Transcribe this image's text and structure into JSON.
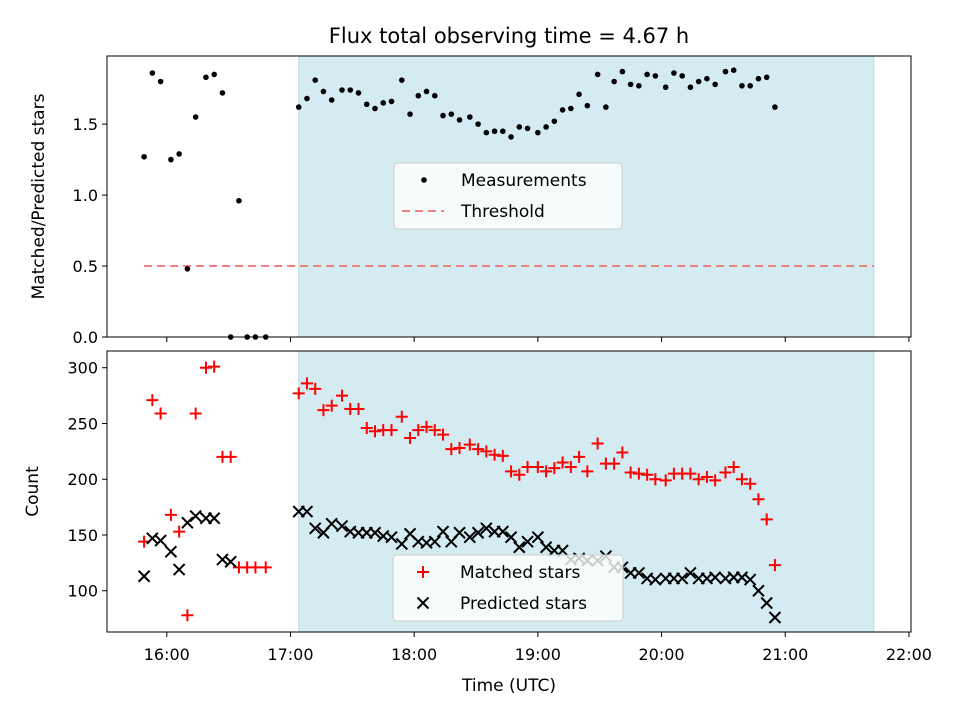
{
  "figure": {
    "title": "Flux total observing time = 4.67 h",
    "xlabel": "Time (UTC)",
    "x_ticks": [
      "16:00",
      "17:00",
      "18:00",
      "19:00",
      "20:00",
      "21:00",
      "22:00"
    ]
  },
  "colors": {
    "shade": "#d3ebf1",
    "shade_edge": "#bcdde6",
    "measurement": "#000000",
    "threshold": "#f08080",
    "matched": "#ff0000",
    "predicted": "#000000"
  },
  "chart_data": [
    {
      "type": "scatter",
      "ylabel": "Matched/Predicted stars",
      "xlim": [
        "15:31",
        "22:01"
      ],
      "ylim": [
        0,
        1.98
      ],
      "y_ticks": [
        "0.0",
        "0.5",
        "1.0",
        "1.5"
      ],
      "shaded_region": [
        "17:04",
        "21:43"
      ],
      "legend": {
        "placement": "center",
        "entries": [
          "Measurements",
          "Threshold"
        ]
      },
      "threshold": {
        "name": "Threshold",
        "y": 0.5,
        "x_range": [
          "15:49",
          "21:43"
        ],
        "style": "dashed"
      },
      "series": [
        {
          "name": "Measurements",
          "marker": "dot",
          "points": [
            [
              "15:49",
              1.27
            ],
            [
              "15:53",
              1.86
            ],
            [
              "15:57",
              1.8
            ],
            [
              "16:02",
              1.25
            ],
            [
              "16:06",
              1.29
            ],
            [
              "16:10",
              0.48
            ],
            [
              "16:14",
              1.55
            ],
            [
              "16:19",
              1.83
            ],
            [
              "16:23",
              1.85
            ],
            [
              "16:27",
              1.72
            ],
            [
              "16:31",
              0.0
            ],
            [
              "16:35",
              0.96
            ],
            [
              "16:39",
              0.0
            ],
            [
              "16:43",
              0.0
            ],
            [
              "16:48",
              0.0
            ],
            [
              "17:04",
              1.62
            ],
            [
              "17:08",
              1.68
            ],
            [
              "17:12",
              1.81
            ],
            [
              "17:16",
              1.73
            ],
            [
              "17:20",
              1.67
            ],
            [
              "17:25",
              1.74
            ],
            [
              "17:29",
              1.74
            ],
            [
              "17:33",
              1.72
            ],
            [
              "17:37",
              1.64
            ],
            [
              "17:41",
              1.61
            ],
            [
              "17:45",
              1.65
            ],
            [
              "17:49",
              1.66
            ],
            [
              "17:54",
              1.81
            ],
            [
              "17:58",
              1.57
            ],
            [
              "18:02",
              1.7
            ],
            [
              "18:06",
              1.73
            ],
            [
              "18:10",
              1.7
            ],
            [
              "18:14",
              1.56
            ],
            [
              "18:18",
              1.57
            ],
            [
              "18:22",
              1.53
            ],
            [
              "18:27",
              1.55
            ],
            [
              "18:31",
              1.5
            ],
            [
              "18:35",
              1.44
            ],
            [
              "18:39",
              1.45
            ],
            [
              "18:43",
              1.45
            ],
            [
              "18:47",
              1.41
            ],
            [
              "18:51",
              1.48
            ],
            [
              "18:55",
              1.47
            ],
            [
              "19:00",
              1.44
            ],
            [
              "19:04",
              1.48
            ],
            [
              "19:08",
              1.52
            ],
            [
              "19:12",
              1.6
            ],
            [
              "19:16",
              1.61
            ],
            [
              "19:20",
              1.71
            ],
            [
              "19:24",
              1.63
            ],
            [
              "19:29",
              1.85
            ],
            [
              "19:33",
              1.62
            ],
            [
              "19:37",
              1.8
            ],
            [
              "19:41",
              1.87
            ],
            [
              "19:45",
              1.78
            ],
            [
              "19:49",
              1.77
            ],
            [
              "19:53",
              1.85
            ],
            [
              "19:57",
              1.84
            ],
            [
              "20:02",
              1.76
            ],
            [
              "20:06",
              1.86
            ],
            [
              "20:10",
              1.84
            ],
            [
              "20:14",
              1.76
            ],
            [
              "20:18",
              1.8
            ],
            [
              "20:22",
              1.82
            ],
            [
              "20:26",
              1.78
            ],
            [
              "20:31",
              1.87
            ],
            [
              "20:35",
              1.88
            ],
            [
              "20:39",
              1.77
            ],
            [
              "20:43",
              1.77
            ],
            [
              "20:47",
              1.82
            ],
            [
              "20:51",
              1.83
            ],
            [
              "20:55",
              1.62
            ]
          ]
        }
      ]
    },
    {
      "type": "scatter",
      "ylabel": "Count",
      "xlim": [
        "15:31",
        "22:01"
      ],
      "ylim": [
        63,
        315
      ],
      "y_ticks": [
        "100",
        "150",
        "200",
        "250",
        "300"
      ],
      "shaded_region": [
        "17:04",
        "21:43"
      ],
      "legend": {
        "placement": "lower center",
        "entries": [
          "Matched stars",
          "Predicted stars"
        ]
      },
      "series": [
        {
          "name": "Matched stars",
          "marker": "+",
          "points": [
            [
              "15:49",
              144
            ],
            [
              "15:53",
              271
            ],
            [
              "15:57",
              259
            ],
            [
              "16:02",
              168
            ],
            [
              "16:06",
              153
            ],
            [
              "16:10",
              78
            ],
            [
              "16:14",
              259
            ],
            [
              "16:19",
              300
            ],
            [
              "16:23",
              301
            ],
            [
              "16:27",
              220
            ],
            [
              "16:31",
              220
            ],
            [
              "16:35",
              121
            ],
            [
              "16:39",
              121
            ],
            [
              "16:43",
              121
            ],
            [
              "16:48",
              121
            ],
            [
              "17:04",
              277
            ],
            [
              "17:08",
              286
            ],
            [
              "17:12",
              281
            ],
            [
              "17:16",
              262
            ],
            [
              "17:20",
              266
            ],
            [
              "17:25",
              275
            ],
            [
              "17:29",
              263
            ],
            [
              "17:33",
              263
            ],
            [
              "17:37",
              246
            ],
            [
              "17:41",
              243
            ],
            [
              "17:45",
              244
            ],
            [
              "17:49",
              244
            ],
            [
              "17:54",
              256
            ],
            [
              "17:58",
              237
            ],
            [
              "18:02",
              244
            ],
            [
              "18:06",
              247
            ],
            [
              "18:10",
              244
            ],
            [
              "18:14",
              240
            ],
            [
              "18:18",
              227
            ],
            [
              "18:22",
              228
            ],
            [
              "18:27",
              231
            ],
            [
              "18:31",
              227
            ],
            [
              "18:35",
              225
            ],
            [
              "18:39",
              222
            ],
            [
              "18:43",
              221
            ],
            [
              "18:47",
              207
            ],
            [
              "18:51",
              204
            ],
            [
              "18:55",
              211
            ],
            [
              "19:00",
              211
            ],
            [
              "19:04",
              207
            ],
            [
              "19:08",
              210
            ],
            [
              "19:12",
              215
            ],
            [
              "19:16",
              211
            ],
            [
              "19:20",
              220
            ],
            [
              "19:24",
              207
            ],
            [
              "19:29",
              232
            ],
            [
              "19:33",
              214
            ],
            [
              "19:37",
              214
            ],
            [
              "19:41",
              224
            ],
            [
              "19:45",
              206
            ],
            [
              "19:49",
              205
            ],
            [
              "19:53",
              204
            ],
            [
              "19:57",
              200
            ],
            [
              "20:02",
              199
            ],
            [
              "20:06",
              205
            ],
            [
              "20:10",
              205
            ],
            [
              "20:14",
              205
            ],
            [
              "20:18",
              200
            ],
            [
              "20:22",
              202
            ],
            [
              "20:26",
              199
            ],
            [
              "20:31",
              206
            ],
            [
              "20:35",
              211
            ],
            [
              "20:39",
              200
            ],
            [
              "20:43",
              196
            ],
            [
              "20:47",
              182
            ],
            [
              "20:51",
              164
            ],
            [
              "20:55",
              123
            ]
          ]
        },
        {
          "name": "Predicted stars",
          "marker": "x",
          "points": [
            [
              "15:49",
              113
            ],
            [
              "15:53",
              147
            ],
            [
              "15:57",
              145
            ],
            [
              "16:02",
              135
            ],
            [
              "16:06",
              119
            ],
            [
              "16:10",
              161
            ],
            [
              "16:14",
              167
            ],
            [
              "16:19",
              165
            ],
            [
              "16:23",
              165
            ],
            [
              "16:27",
              128
            ],
            [
              "16:31",
              126
            ],
            [
              "17:04",
              171
            ],
            [
              "17:08",
              171
            ],
            [
              "17:12",
              156
            ],
            [
              "17:16",
              152
            ],
            [
              "17:20",
              160
            ],
            [
              "17:25",
              158
            ],
            [
              "17:29",
              153
            ],
            [
              "17:33",
              152
            ],
            [
              "17:37",
              152
            ],
            [
              "17:41",
              152
            ],
            [
              "17:45",
              149
            ],
            [
              "17:49",
              148
            ],
            [
              "17:54",
              142
            ],
            [
              "17:58",
              151
            ],
            [
              "18:02",
              144
            ],
            [
              "18:06",
              143
            ],
            [
              "18:10",
              144
            ],
            [
              "18:14",
              153
            ],
            [
              "18:18",
              144
            ],
            [
              "18:22",
              152
            ],
            [
              "18:27",
              148
            ],
            [
              "18:31",
              152
            ],
            [
              "18:35",
              156
            ],
            [
              "18:39",
              153
            ],
            [
              "18:43",
              153
            ],
            [
              "18:47",
              148
            ],
            [
              "18:51",
              139
            ],
            [
              "18:55",
              144
            ],
            [
              "19:00",
              148
            ],
            [
              "19:04",
              139
            ],
            [
              "19:08",
              136
            ],
            [
              "19:12",
              136
            ],
            [
              "19:16",
              128
            ],
            [
              "19:20",
              129
            ],
            [
              "19:24",
              127
            ],
            [
              "19:29",
              127
            ],
            [
              "19:33",
              131
            ],
            [
              "19:37",
              121
            ],
            [
              "19:41",
              121
            ],
            [
              "19:45",
              116
            ],
            [
              "19:49",
              116
            ],
            [
              "19:53",
              111
            ],
            [
              "19:57",
              110
            ],
            [
              "20:02",
              111
            ],
            [
              "20:06",
              111
            ],
            [
              "20:10",
              111
            ],
            [
              "20:14",
              116
            ],
            [
              "20:18",
              111
            ],
            [
              "20:22",
              111
            ],
            [
              "20:26",
              112
            ],
            [
              "20:31",
              111
            ],
            [
              "20:35",
              112
            ],
            [
              "20:39",
              112
            ],
            [
              "20:43",
              110
            ],
            [
              "20:47",
              100
            ],
            [
              "20:51",
              89
            ],
            [
              "20:55",
              76
            ]
          ]
        }
      ]
    }
  ]
}
